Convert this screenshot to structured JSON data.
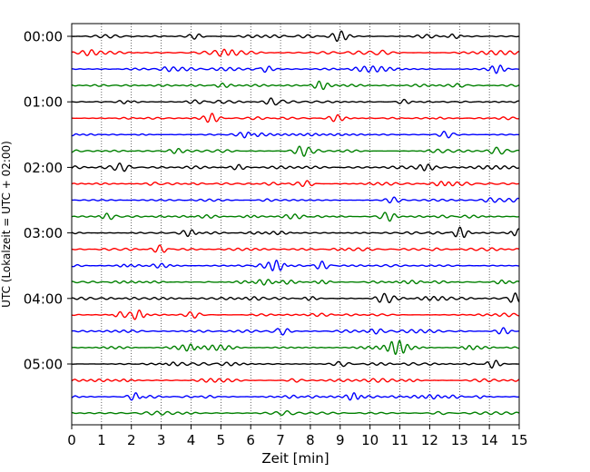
{
  "chart_data": {
    "type": "line",
    "title": "",
    "xlabel": "Zeit  [min]",
    "ylabel": "UTC (Lokalzeit = UTC + 02:00)",
    "xlim": [
      0,
      15
    ],
    "x_ticks": [
      "0",
      "1",
      "2",
      "3",
      "4",
      "5",
      "6",
      "7",
      "8",
      "9",
      "10",
      "11",
      "12",
      "13",
      "14",
      "15"
    ],
    "y_ticks": [
      "00:00",
      "01:00",
      "02:00",
      "03:00",
      "04:00",
      "05:00"
    ],
    "grid": "vertical dotted",
    "trace_minutes": 15,
    "trace_colors": [
      "#000000",
      "#ff0000",
      "#0000ff",
      "#008000"
    ],
    "traces": [
      {
        "start": "00:00",
        "color": "#000000",
        "bursts": [
          [
            9.0,
            0.8
          ],
          [
            12.9,
            0.9
          ],
          [
            4.2,
            0.4
          ]
        ]
      },
      {
        "start": "00:15",
        "color": "#ff0000",
        "bursts": [
          [
            5.2,
            0.9
          ],
          [
            0.6,
            0.4
          ],
          [
            10.3,
            0.5
          ]
        ]
      },
      {
        "start": "00:30",
        "color": "#0000ff",
        "bursts": [
          [
            6.4,
            1.0
          ],
          [
            14.3,
            0.9
          ],
          [
            3.1,
            0.4
          ]
        ]
      },
      {
        "start": "00:45",
        "color": "#008000",
        "bursts": [
          [
            8.3,
            0.6
          ],
          [
            13.1,
            0.5
          ],
          [
            5.0,
            0.3
          ]
        ]
      },
      {
        "start": "01:00",
        "color": "#000000",
        "bursts": [
          [
            6.8,
            0.9
          ],
          [
            1.9,
            0.6
          ],
          [
            11.1,
            0.4
          ]
        ]
      },
      {
        "start": "01:15",
        "color": "#ff0000",
        "bursts": [
          [
            4.7,
            0.7
          ],
          [
            8.9,
            0.5
          ],
          [
            12.2,
            0.4
          ]
        ]
      },
      {
        "start": "01:30",
        "color": "#0000ff",
        "bursts": [
          [
            6.0,
            0.9
          ],
          [
            12.6,
            1.0
          ],
          [
            2.4,
            0.4
          ]
        ]
      },
      {
        "start": "01:45",
        "color": "#008000",
        "bursts": [
          [
            14.3,
            0.9
          ],
          [
            7.7,
            0.5
          ],
          [
            3.5,
            0.4
          ]
        ]
      },
      {
        "start": "02:00",
        "color": "#000000",
        "bursts": [
          [
            11.9,
            1.0
          ],
          [
            1.7,
            0.7
          ],
          [
            5.6,
            0.4
          ]
        ]
      },
      {
        "start": "02:15",
        "color": "#ff0000",
        "bursts": [
          [
            8.0,
            0.6
          ],
          [
            12.5,
            0.5
          ],
          [
            2.8,
            0.3
          ]
        ]
      },
      {
        "start": "02:30",
        "color": "#0000ff",
        "bursts": [
          [
            10.8,
            0.9
          ],
          [
            6.5,
            0.5
          ],
          [
            14.0,
            0.4
          ]
        ]
      },
      {
        "start": "02:45",
        "color": "#008000",
        "bursts": [
          [
            10.6,
            1.0
          ],
          [
            1.2,
            0.8
          ],
          [
            6.0,
            0.4
          ]
        ]
      },
      {
        "start": "03:00",
        "color": "#000000",
        "bursts": [
          [
            14.9,
            1.0
          ],
          [
            13.0,
            0.8
          ],
          [
            4.0,
            0.4
          ]
        ]
      },
      {
        "start": "03:15",
        "color": "#ff0000",
        "bursts": [
          [
            3.0,
            0.8
          ],
          [
            9.0,
            0.5
          ],
          [
            12.0,
            0.4
          ]
        ]
      },
      {
        "start": "03:30",
        "color": "#0000ff",
        "bursts": [
          [
            6.9,
            0.9
          ],
          [
            8.4,
            0.7
          ],
          [
            1.8,
            0.4
          ]
        ]
      },
      {
        "start": "03:45",
        "color": "#008000",
        "bursts": [
          [
            8.4,
            0.6
          ],
          [
            14.4,
            0.4
          ],
          [
            4.6,
            0.3
          ]
        ]
      },
      {
        "start": "04:00",
        "color": "#000000",
        "bursts": [
          [
            10.5,
            1.0
          ],
          [
            14.8,
            0.9
          ],
          [
            7.9,
            0.6
          ]
        ]
      },
      {
        "start": "04:15",
        "color": "#ff0000",
        "bursts": [
          [
            2.3,
            1.0
          ],
          [
            1.5,
            0.8
          ],
          [
            4.1,
            0.5
          ]
        ]
      },
      {
        "start": "04:30",
        "color": "#0000ff",
        "bursts": [
          [
            7.0,
            0.9
          ],
          [
            14.5,
            0.8
          ],
          [
            10.2,
            0.4
          ]
        ]
      },
      {
        "start": "04:45",
        "color": "#008000",
        "bursts": [
          [
            10.9,
            0.9
          ],
          [
            4.1,
            0.6
          ],
          [
            13.3,
            0.4
          ]
        ]
      },
      {
        "start": "05:00",
        "color": "#000000",
        "bursts": [
          [
            3.2,
            0.8
          ],
          [
            14.1,
            0.8
          ],
          [
            9.1,
            0.5
          ]
        ]
      },
      {
        "start": "05:15",
        "color": "#ff0000",
        "bursts": [
          [
            7.5,
            0.6
          ],
          [
            11.4,
            0.5
          ],
          [
            1.9,
            0.4
          ]
        ]
      },
      {
        "start": "05:30",
        "color": "#0000ff",
        "bursts": [
          [
            2.2,
            0.7
          ],
          [
            9.5,
            0.5
          ],
          [
            13.8,
            0.4
          ]
        ]
      },
      {
        "start": "05:45",
        "color": "#008000",
        "bursts": [
          [
            12.4,
            0.7
          ],
          [
            7.2,
            0.5
          ],
          [
            3.9,
            0.4
          ]
        ]
      }
    ]
  }
}
